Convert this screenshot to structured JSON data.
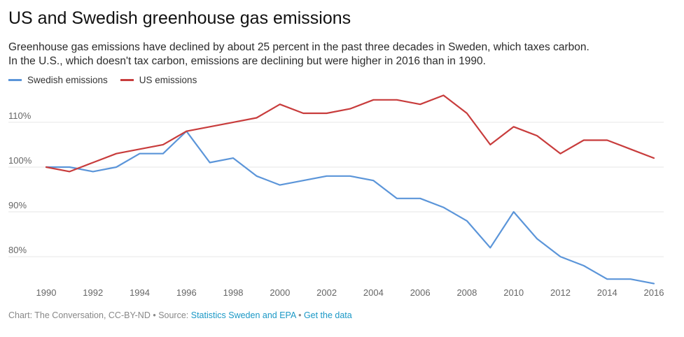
{
  "header": {
    "title": "US and Swedish greenhouse gas emissions",
    "subtitle_line1": "Greenhouse gas emissions have declined by about 25 percent in the past three decades in Sweden, which taxes carbon.",
    "subtitle_line2": "In the U.S., which doesn't tax carbon, emissions are declining but were higher in 2016 than in 1990."
  },
  "footer": {
    "prefix": "Chart: The Conversation, CC-BY-ND",
    "separator": " • ",
    "source_label": "Source: ",
    "source_link": "Statistics Sweden and EPA",
    "data_link": "Get the data"
  },
  "colors": {
    "swedish": "#5b95d9",
    "us": "#c83c3c",
    "grid": "#e6e6e6",
    "tick": "#666666"
  },
  "chart_data": {
    "type": "line",
    "x": [
      1990,
      1991,
      1992,
      1993,
      1994,
      1995,
      1996,
      1997,
      1998,
      1999,
      2000,
      2001,
      2002,
      2003,
      2004,
      2005,
      2006,
      2007,
      2008,
      2009,
      2010,
      2011,
      2012,
      2013,
      2014,
      2015,
      2016
    ],
    "series": [
      {
        "name": "Swedish emissions",
        "values": [
          100,
          100,
          99,
          100,
          103,
          103,
          108,
          101,
          102,
          98,
          96,
          97,
          98,
          98,
          97,
          93,
          93,
          91,
          88,
          82,
          90,
          84,
          80,
          78,
          75,
          75,
          74
        ]
      },
      {
        "name": "US emissions",
        "values": [
          100,
          99,
          101,
          103,
          104,
          105,
          108,
          109,
          110,
          111,
          114,
          112,
          112,
          113,
          115,
          115,
          114,
          116,
          112,
          105,
          109,
          107,
          103,
          106,
          106,
          104,
          102
        ]
      }
    ],
    "xlim": [
      1990,
      2016
    ],
    "ylim": [
      73,
      117
    ],
    "x_ticks": [
      1990,
      1992,
      1994,
      1996,
      1998,
      2000,
      2002,
      2004,
      2006,
      2008,
      2010,
      2012,
      2014,
      2016
    ],
    "y_ticks": [
      80,
      90,
      100,
      110
    ],
    "y_tick_labels": [
      "80%",
      "90%",
      "100%",
      "110%"
    ],
    "grid": true,
    "legend": "top-left"
  }
}
